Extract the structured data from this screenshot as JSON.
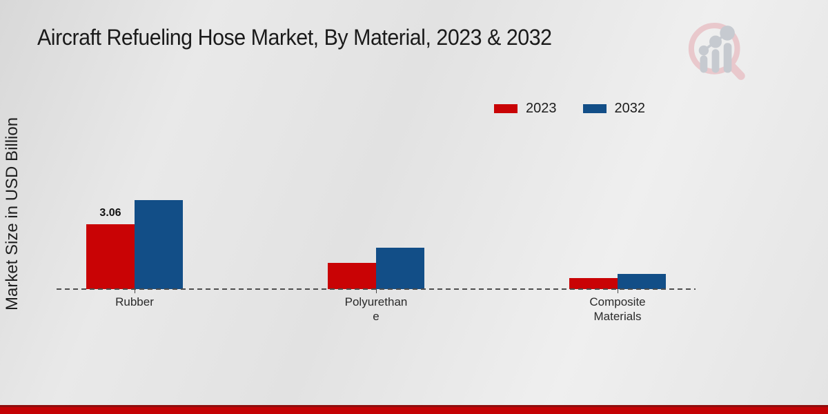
{
  "header": {
    "title": "Aircraft Refueling Hose Market, By Material, 2023 & 2032"
  },
  "logo": {
    "name": "market-research-future-logo",
    "ring_color": "#e9c8cc",
    "bars_color": "#c6cad0"
  },
  "axis": {
    "y_label": "Market Size in USD Billion"
  },
  "legend": {
    "items": [
      {
        "label": "2023",
        "color": "#c90305"
      },
      {
        "label": "2032",
        "color": "#124e87"
      }
    ]
  },
  "chart_data": {
    "type": "bar",
    "title": "Aircraft Refueling Hose Market, By Material, 2023 & 2032",
    "xlabel": "",
    "ylabel": "Market Size in USD Billion",
    "categories": [
      "Rubber",
      "Polyurethane",
      "Composite Materials"
    ],
    "x_tick_lines": [
      [
        "Rubber"
      ],
      [
        "Polyurethan",
        "e"
      ],
      [
        "Composite",
        "Materials"
      ]
    ],
    "series": [
      {
        "name": "2023",
        "color": "#c90305",
        "values": [
          3.06,
          1.24,
          0.52
        ]
      },
      {
        "name": "2032",
        "color": "#124e87",
        "values": [
          4.2,
          1.95,
          0.72
        ]
      }
    ],
    "annotations": [
      {
        "series": "2023",
        "category": "Rubber",
        "value": 3.06,
        "text": "3.06"
      }
    ],
    "baseline": {
      "y_value": 0,
      "style": "dashed",
      "color": "#4d4d4d"
    },
    "ylim": [
      0,
      4.5
    ],
    "grid": false,
    "legend_position": "top-right"
  },
  "footer": {
    "stripe_color": "#c40204",
    "stripe_border_color": "#8e0e0e"
  }
}
